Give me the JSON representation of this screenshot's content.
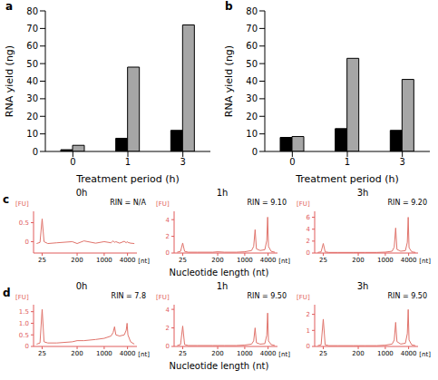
{
  "chart_data": [
    {
      "type": "bar",
      "panel": "a",
      "xlabel": "Treatment period (h)",
      "ylabel": "RNA yield (ng)",
      "categories": [
        "0",
        "1",
        "3"
      ],
      "series": [
        {
          "color": "#000000",
          "values": [
            1,
            7.5,
            12
          ]
        },
        {
          "color": "#a6a6a6",
          "values": [
            3.5,
            48,
            72
          ]
        }
      ],
      "ylim": [
        0,
        80
      ],
      "yticks": [
        0,
        10,
        20,
        30,
        40,
        50,
        60,
        70,
        80
      ],
      "grid": false
    },
    {
      "type": "bar",
      "panel": "b",
      "xlabel": "Treatment period (h)",
      "ylabel": "RNA yield (ng)",
      "categories": [
        "0",
        "1",
        "3"
      ],
      "series": [
        {
          "color": "#000000",
          "values": [
            8,
            13,
            12
          ]
        },
        {
          "color": "#a6a6a6",
          "values": [
            8.5,
            53,
            41
          ]
        }
      ],
      "ylim": [
        0,
        80
      ],
      "yticks": [
        0,
        10,
        20,
        30,
        40,
        50,
        60,
        70,
        80
      ],
      "grid": false
    },
    {
      "type": "line",
      "panel": "c",
      "xlabel": "Nucleotide length (nt)",
      "log": "x",
      "xlim": [
        15,
        7000
      ],
      "xticks": [
        25,
        200,
        1000,
        4000
      ],
      "charts": [
        {
          "title": "0h",
          "annotation": "RIN = N/A",
          "ylabel": "[FU]",
          "xunit": "[nt]",
          "color": "#e0736b",
          "ylim": [
            -0.3,
            0.8
          ],
          "yticks": [
            0,
            0.5
          ],
          "x": [
            18,
            22,
            25,
            28,
            35,
            60,
            150,
            200,
            300,
            600,
            1000,
            1500,
            1700,
            1850,
            2000,
            2500,
            3300,
            3700,
            3900,
            4100,
            4800,
            6000
          ],
          "values": [
            -0.05,
            -0.02,
            0.6,
            0.0,
            -0.05,
            -0.03,
            0.0,
            -0.05,
            0.02,
            -0.04,
            0.0,
            -0.03,
            0.02,
            -0.02,
            0.0,
            -0.04,
            0.01,
            -0.03,
            0.0,
            -0.02,
            -0.04,
            -0.05
          ]
        },
        {
          "title": "1h",
          "annotation": "RIN = 9.10",
          "ylabel": "[FU]",
          "xunit": "[nt]",
          "color": "#e0736b",
          "ylim": [
            0,
            5
          ],
          "yticks": [
            0,
            2,
            4
          ],
          "x": [
            18,
            22,
            25,
            28,
            35,
            60,
            150,
            200,
            300,
            600,
            1000,
            1500,
            1700,
            1850,
            2000,
            2500,
            3300,
            3700,
            3900,
            4100,
            4800,
            6000
          ],
          "values": [
            0.1,
            0.2,
            1.2,
            0.2,
            0.1,
            0.1,
            0.1,
            0.15,
            0.1,
            0.1,
            0.15,
            0.3,
            0.8,
            2.8,
            0.5,
            0.3,
            0.4,
            1.5,
            4.3,
            0.8,
            0.2,
            0.1
          ]
        },
        {
          "title": "3h",
          "annotation": "RIN = 9.20",
          "ylabel": "[FU]",
          "xunit": "[nt]",
          "color": "#e0736b",
          "ylim": [
            0,
            7
          ],
          "yticks": [
            0,
            2,
            4,
            6
          ],
          "x": [
            18,
            22,
            25,
            28,
            35,
            60,
            150,
            200,
            300,
            600,
            1000,
            1500,
            1700,
            1850,
            2000,
            2500,
            3300,
            3700,
            3900,
            4100,
            4800,
            6000
          ],
          "values": [
            0.1,
            0.2,
            1.6,
            0.2,
            0.1,
            0.1,
            0.1,
            0.1,
            0.1,
            0.1,
            0.15,
            0.3,
            1.0,
            4.2,
            0.6,
            0.3,
            0.4,
            1.8,
            6.0,
            0.9,
            0.2,
            0.1
          ]
        }
      ]
    },
    {
      "type": "line",
      "panel": "d",
      "xlabel": "Nucleotide length (nt)",
      "log": "x",
      "xlim": [
        15,
        7000
      ],
      "xticks": [
        25,
        200,
        1000,
        4000
      ],
      "charts": [
        {
          "title": "0h",
          "annotation": "RIN = 7.8",
          "ylabel": "[FU]",
          "xunit": "[nt]",
          "color": "#e0736b",
          "ylim": [
            0,
            1.8
          ],
          "yticks": [
            0,
            0.5,
            {
              "value": 1,
              "label": "1.0"
            },
            1.5
          ],
          "x": [
            18,
            22,
            25,
            28,
            35,
            60,
            150,
            200,
            300,
            600,
            1000,
            1500,
            1700,
            1850,
            2000,
            2500,
            3300,
            3700,
            3900,
            4100,
            4800,
            6000
          ],
          "values": [
            0.1,
            0.15,
            1.6,
            0.2,
            0.15,
            0.15,
            0.2,
            0.25,
            0.25,
            0.3,
            0.35,
            0.45,
            0.6,
            0.85,
            0.5,
            0.45,
            0.5,
            0.7,
            1.0,
            0.5,
            0.2,
            0.1
          ]
        },
        {
          "title": "1h",
          "annotation": "RIN = 9.50",
          "ylabel": "[FU]",
          "xunit": "[nt]",
          "color": "#e0736b",
          "ylim": [
            0,
            4.5
          ],
          "yticks": [
            0,
            2,
            4
          ],
          "x": [
            18,
            22,
            25,
            28,
            35,
            60,
            150,
            200,
            300,
            600,
            1000,
            1500,
            1700,
            1850,
            2000,
            2500,
            3300,
            3700,
            3900,
            4100,
            4800,
            6000
          ],
          "values": [
            0.1,
            0.2,
            2.2,
            0.2,
            0.1,
            0.1,
            0.1,
            0.1,
            0.1,
            0.1,
            0.15,
            0.25,
            0.6,
            2.0,
            0.4,
            0.25,
            0.3,
            1.2,
            3.6,
            0.6,
            0.2,
            0.1
          ]
        },
        {
          "title": "3h",
          "annotation": "RIN = 9.50",
          "ylabel": "[FU]",
          "xunit": "[nt]",
          "color": "#e0736b",
          "ylim": [
            0,
            2.6
          ],
          "yticks": [
            0,
            1,
            2
          ],
          "x": [
            18,
            22,
            25,
            28,
            35,
            60,
            150,
            200,
            300,
            600,
            1000,
            1500,
            1700,
            1850,
            2000,
            2500,
            3300,
            3700,
            3900,
            4100,
            4800,
            6000
          ],
          "values": [
            0.05,
            0.1,
            1.7,
            0.1,
            0.05,
            0.05,
            0.05,
            0.05,
            0.05,
            0.05,
            0.08,
            0.15,
            0.4,
            1.5,
            0.3,
            0.15,
            0.2,
            0.8,
            2.3,
            0.4,
            0.1,
            0.05
          ]
        }
      ]
    }
  ]
}
